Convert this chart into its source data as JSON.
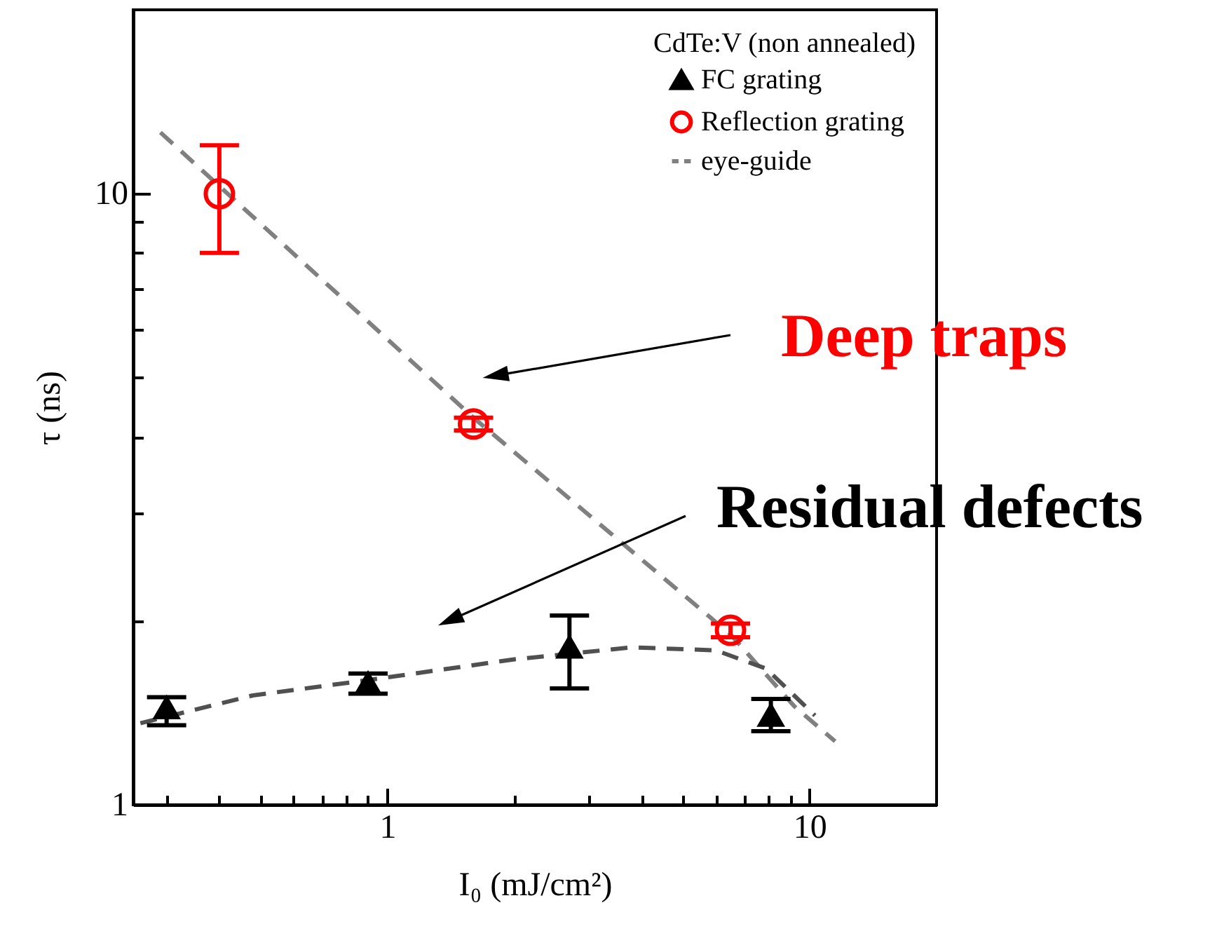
{
  "chart_data": {
    "type": "scatter",
    "xlabel": "I₀ (mJ/cm²)",
    "ylabel": "τ (ns)",
    "legend_title": "CdTe:V (non annealed)",
    "legend": "top right",
    "log": "xy",
    "xlim": [
      0.25,
      20
    ],
    "ylim": [
      1,
      20
    ],
    "xticks": [
      {
        "value": 0.3,
        "label": null
      },
      {
        "value": 0.4,
        "label": null
      },
      {
        "value": 0.5,
        "label": null
      },
      {
        "value": 0.6,
        "label": null
      },
      {
        "value": 0.7,
        "label": null
      },
      {
        "value": 0.8,
        "label": null
      },
      {
        "value": 0.9,
        "label": null
      },
      1,
      {
        "value": 2,
        "label": null
      },
      {
        "value": 3,
        "label": null
      },
      {
        "value": 4,
        "label": null
      },
      {
        "value": 5,
        "label": null
      },
      {
        "value": 6,
        "label": null
      },
      {
        "value": 7,
        "label": null
      },
      {
        "value": 8,
        "label": null
      },
      {
        "value": 9,
        "label": null
      },
      10
    ],
    "yticks": [
      1,
      {
        "value": 2,
        "label": null
      },
      {
        "value": 3,
        "label": null
      },
      {
        "value": 4,
        "label": null
      },
      {
        "value": 5,
        "label": null
      },
      {
        "value": 6,
        "label": null
      },
      {
        "value": 7,
        "label": null
      },
      {
        "value": 8,
        "label": null
      },
      {
        "value": 9,
        "label": null
      },
      10
    ],
    "series": [
      {
        "name": "FC grating",
        "marker": "triangle",
        "color": "#000000",
        "x": [
          0.3,
          0.9,
          2.7,
          8.1
        ],
        "values": [
          1.44,
          1.58,
          1.81,
          1.4
        ],
        "errors": [
          [
            1.35,
            1.5
          ],
          [
            1.52,
            1.64
          ],
          [
            1.55,
            2.04
          ],
          [
            1.32,
            1.49
          ]
        ]
      },
      {
        "name": "Reflection grating",
        "marker": "circle",
        "color": "#ff0000",
        "x": [
          0.4,
          1.6,
          6.5
        ],
        "values": [
          10,
          4.2,
          1.93
        ],
        "errors": [
          [
            8,
            12
          ],
          [
            4.1,
            4.3
          ],
          [
            1.88,
            1.98
          ]
        ]
      },
      {
        "name": "eye-guide",
        "type": "line",
        "line_style": "dashed",
        "color": "#808080",
        "x": [
          0.29,
          1.6,
          6.5,
          9.2,
          11.5
        ],
        "values": [
          12.6,
          4.3,
          1.9,
          1.45,
          1.27
        ]
      },
      {
        "type": "line",
        "line_style": "dashed",
        "color": "#505050",
        "x": [
          0.26,
          0.48,
          0.9,
          2.0,
          3.8,
          6.0,
          7.9,
          10.3
        ],
        "values": [
          1.36,
          1.51,
          1.6,
          1.73,
          1.81,
          1.79,
          1.67,
          1.4
        ]
      }
    ],
    "annotations": [
      "Deep traps",
      "Residual defects"
    ]
  }
}
